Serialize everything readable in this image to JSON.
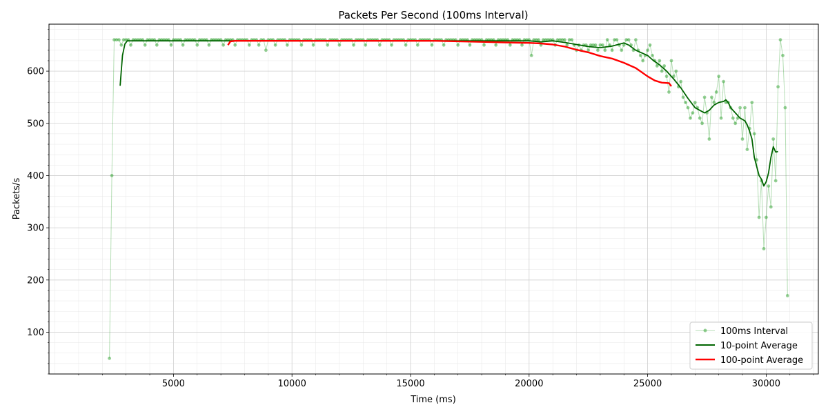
{
  "chart_data": {
    "type": "line",
    "title": "Packets Per Second (100ms Interval)",
    "xlabel": "Time (ms)",
    "ylabel": "Packets/s",
    "xlim": [
      -250,
      32200
    ],
    "ylim": [
      20,
      690
    ],
    "x_ticks": [
      5000,
      10000,
      15000,
      20000,
      25000,
      30000
    ],
    "y_ticks": [
      100,
      200,
      300,
      400,
      500,
      600
    ],
    "grid": true,
    "legend_position": "lower-right",
    "series": [
      {
        "name": "100ms Interval",
        "color": "#2ca02c",
        "style": "markers",
        "x": [
          2300,
          2400,
          2500,
          2600,
          2700,
          2800,
          2900,
          3000,
          3100,
          3200,
          3300,
          3400,
          3500,
          3600,
          3700,
          3800,
          3900,
          4000,
          4100,
          4200,
          4300,
          4400,
          4500,
          4600,
          4700,
          4800,
          4900,
          5000,
          5100,
          5200,
          5300,
          5400,
          5500,
          5600,
          5700,
          5800,
          5900,
          6000,
          6100,
          6200,
          6300,
          6400,
          6500,
          6600,
          6700,
          6800,
          6900,
          7000,
          7100,
          7200,
          7300,
          7400,
          7500,
          7600,
          7700,
          7800,
          7900,
          8000,
          8100,
          8200,
          8300,
          8400,
          8500,
          8600,
          8700,
          8800,
          8900,
          9000,
          9100,
          9200,
          9300,
          9400,
          9500,
          9600,
          9700,
          9800,
          9900,
          10000,
          10100,
          10200,
          10300,
          10400,
          10500,
          10600,
          10700,
          10800,
          10900,
          11000,
          11100,
          11200,
          11300,
          11400,
          11500,
          11600,
          11700,
          11800,
          11900,
          12000,
          12100,
          12200,
          12300,
          12400,
          12500,
          12600,
          12700,
          12800,
          12900,
          13000,
          13100,
          13200,
          13300,
          13400,
          13500,
          13600,
          13700,
          13800,
          13900,
          14000,
          14100,
          14200,
          14300,
          14400,
          14500,
          14600,
          14700,
          14800,
          14900,
          15000,
          15100,
          15200,
          15300,
          15400,
          15500,
          15600,
          15700,
          15800,
          15900,
          16000,
          16100,
          16200,
          16300,
          16400,
          16500,
          16600,
          16700,
          16800,
          16900,
          17000,
          17100,
          17200,
          17300,
          17400,
          17500,
          17600,
          17700,
          17800,
          17900,
          18000,
          18100,
          18200,
          18300,
          18400,
          18500,
          18600,
          18700,
          18800,
          18900,
          19000,
          19100,
          19200,
          19300,
          19400,
          19500,
          19600,
          19700,
          19800,
          19900,
          20000,
          20100,
          20200,
          20300,
          20400,
          20500,
          20600,
          20700,
          20800,
          20900,
          21000,
          21100,
          21200,
          21300,
          21400,
          21500,
          21600,
          21700,
          21800,
          21900,
          22000,
          22100,
          22200,
          22300,
          22400,
          22500,
          22600,
          22700,
          22800,
          22900,
          23000,
          23100,
          23200,
          23300,
          23400,
          23500,
          23600,
          23700,
          23800,
          23900,
          24000,
          24100,
          24200,
          24300,
          24400,
          24500,
          24600,
          24700,
          24800,
          24900,
          25000,
          25100,
          25200,
          25300,
          25400,
          25500,
          25600,
          25700,
          25800,
          25900,
          26000,
          26100,
          26200,
          26300,
          26400,
          26500,
          26600,
          26700,
          26800,
          26900,
          27000,
          27100,
          27200,
          27300,
          27400,
          27500,
          27600,
          27700,
          27800,
          27900,
          28000,
          28100,
          28200,
          28300,
          28400,
          28500,
          28600,
          28700,
          28800,
          28900,
          29000,
          29100,
          29200,
          29300,
          29400,
          29500,
          29600,
          29700,
          29800,
          29900,
          30000,
          30100,
          30200,
          30300,
          30400,
          30500,
          30600,
          30700,
          30800,
          30900
        ],
        "y": [
          50,
          400,
          660,
          660,
          660,
          650,
          660,
          660,
          660,
          650,
          660,
          660,
          660,
          660,
          660,
          650,
          660,
          660,
          660,
          660,
          650,
          660,
          660,
          660,
          660,
          660,
          650,
          660,
          660,
          660,
          660,
          650,
          660,
          660,
          660,
          660,
          660,
          650,
          660,
          660,
          660,
          660,
          650,
          660,
          660,
          660,
          660,
          660,
          650,
          660,
          660,
          660,
          660,
          650,
          660,
          660,
          660,
          660,
          660,
          650,
          660,
          660,
          660,
          650,
          660,
          660,
          640,
          660,
          660,
          660,
          650,
          660,
          660,
          660,
          660,
          650,
          660,
          660,
          660,
          660,
          660,
          650,
          660,
          660,
          660,
          660,
          650,
          660,
          660,
          660,
          660,
          660,
          650,
          660,
          660,
          660,
          660,
          650,
          660,
          660,
          660,
          660,
          660,
          650,
          660,
          660,
          660,
          660,
          650,
          660,
          660,
          660,
          660,
          660,
          650,
          660,
          660,
          660,
          660,
          650,
          660,
          660,
          660,
          660,
          660,
          650,
          660,
          660,
          660,
          660,
          650,
          660,
          660,
          660,
          660,
          660,
          650,
          660,
          660,
          660,
          660,
          650,
          660,
          660,
          660,
          660,
          660,
          650,
          660,
          660,
          660,
          660,
          650,
          660,
          660,
          660,
          660,
          660,
          650,
          660,
          660,
          660,
          660,
          650,
          660,
          660,
          660,
          660,
          660,
          650,
          660,
          660,
          660,
          660,
          650,
          660,
          660,
          660,
          630,
          660,
          660,
          660,
          650,
          660,
          660,
          660,
          660,
          660,
          650,
          660,
          660,
          660,
          660,
          650,
          660,
          660,
          650,
          640,
          650,
          640,
          650,
          650,
          640,
          650,
          650,
          650,
          640,
          650,
          650,
          640,
          660,
          650,
          640,
          660,
          660,
          650,
          640,
          650,
          660,
          660,
          650,
          640,
          660,
          640,
          630,
          620,
          630,
          640,
          650,
          630,
          620,
          610,
          620,
          600,
          610,
          590,
          560,
          620,
          590,
          600,
          570,
          580,
          550,
          540,
          530,
          510,
          520,
          540,
          530,
          510,
          500,
          550,
          520,
          470,
          550,
          540,
          560,
          590,
          510,
          580,
          540,
          540,
          530,
          510,
          500,
          510,
          530,
          470,
          530,
          450,
          490,
          540,
          480,
          430,
          320,
          390,
          260,
          320,
          380,
          340,
          470,
          390,
          570,
          660,
          630,
          530,
          170
        ]
      },
      {
        "name": "10-point Average",
        "color": "#006400",
        "style": "line",
        "x": [
          2750,
          2850,
          2950,
          3050,
          3500,
          4000,
          5000,
          6000,
          7000,
          8000,
          9000,
          10000,
          12000,
          14000,
          16000,
          18000,
          20000,
          20500,
          21000,
          21500,
          22000,
          22500,
          23000,
          23500,
          24000,
          24200,
          24500,
          25000,
          25200,
          25500,
          25800,
          26100,
          26400,
          26700,
          27000,
          27200,
          27400,
          27600,
          27800,
          28000,
          28200,
          28300,
          28400,
          28500,
          28700,
          28900,
          29100,
          29200,
          29300,
          29400,
          29500,
          29700,
          29800,
          29900,
          30000,
          30100,
          30200,
          30300,
          30400,
          30500
        ],
        "y": [
          572,
          630,
          652,
          658,
          658,
          658,
          658,
          658,
          658,
          658,
          658,
          658,
          658,
          658,
          658,
          658,
          658,
          656,
          658,
          655,
          651,
          647,
          645,
          648,
          654,
          650,
          640,
          630,
          622,
          612,
          600,
          585,
          568,
          548,
          530,
          525,
          520,
          525,
          535,
          540,
          542,
          545,
          540,
          530,
          520,
          510,
          505,
          497,
          485,
          470,
          435,
          400,
          393,
          380,
          388,
          405,
          435,
          455,
          445,
          446
        ]
      },
      {
        "name": "100-point Average",
        "color": "#ff0000",
        "style": "line-thick",
        "x": [
          7300,
          7400,
          7600,
          8000,
          9000,
          10000,
          12000,
          14000,
          16000,
          18000,
          19000,
          20000,
          20500,
          21000,
          21500,
          22000,
          22500,
          23000,
          23500,
          24000,
          24500,
          25000,
          25300,
          25600,
          25900,
          26000
        ],
        "y": [
          650,
          657,
          658,
          658,
          658,
          658,
          658,
          658,
          658,
          656,
          655,
          654,
          653,
          651,
          647,
          641,
          636,
          629,
          624,
          616,
          606,
          590,
          582,
          578,
          577,
          571
        ]
      }
    ]
  }
}
